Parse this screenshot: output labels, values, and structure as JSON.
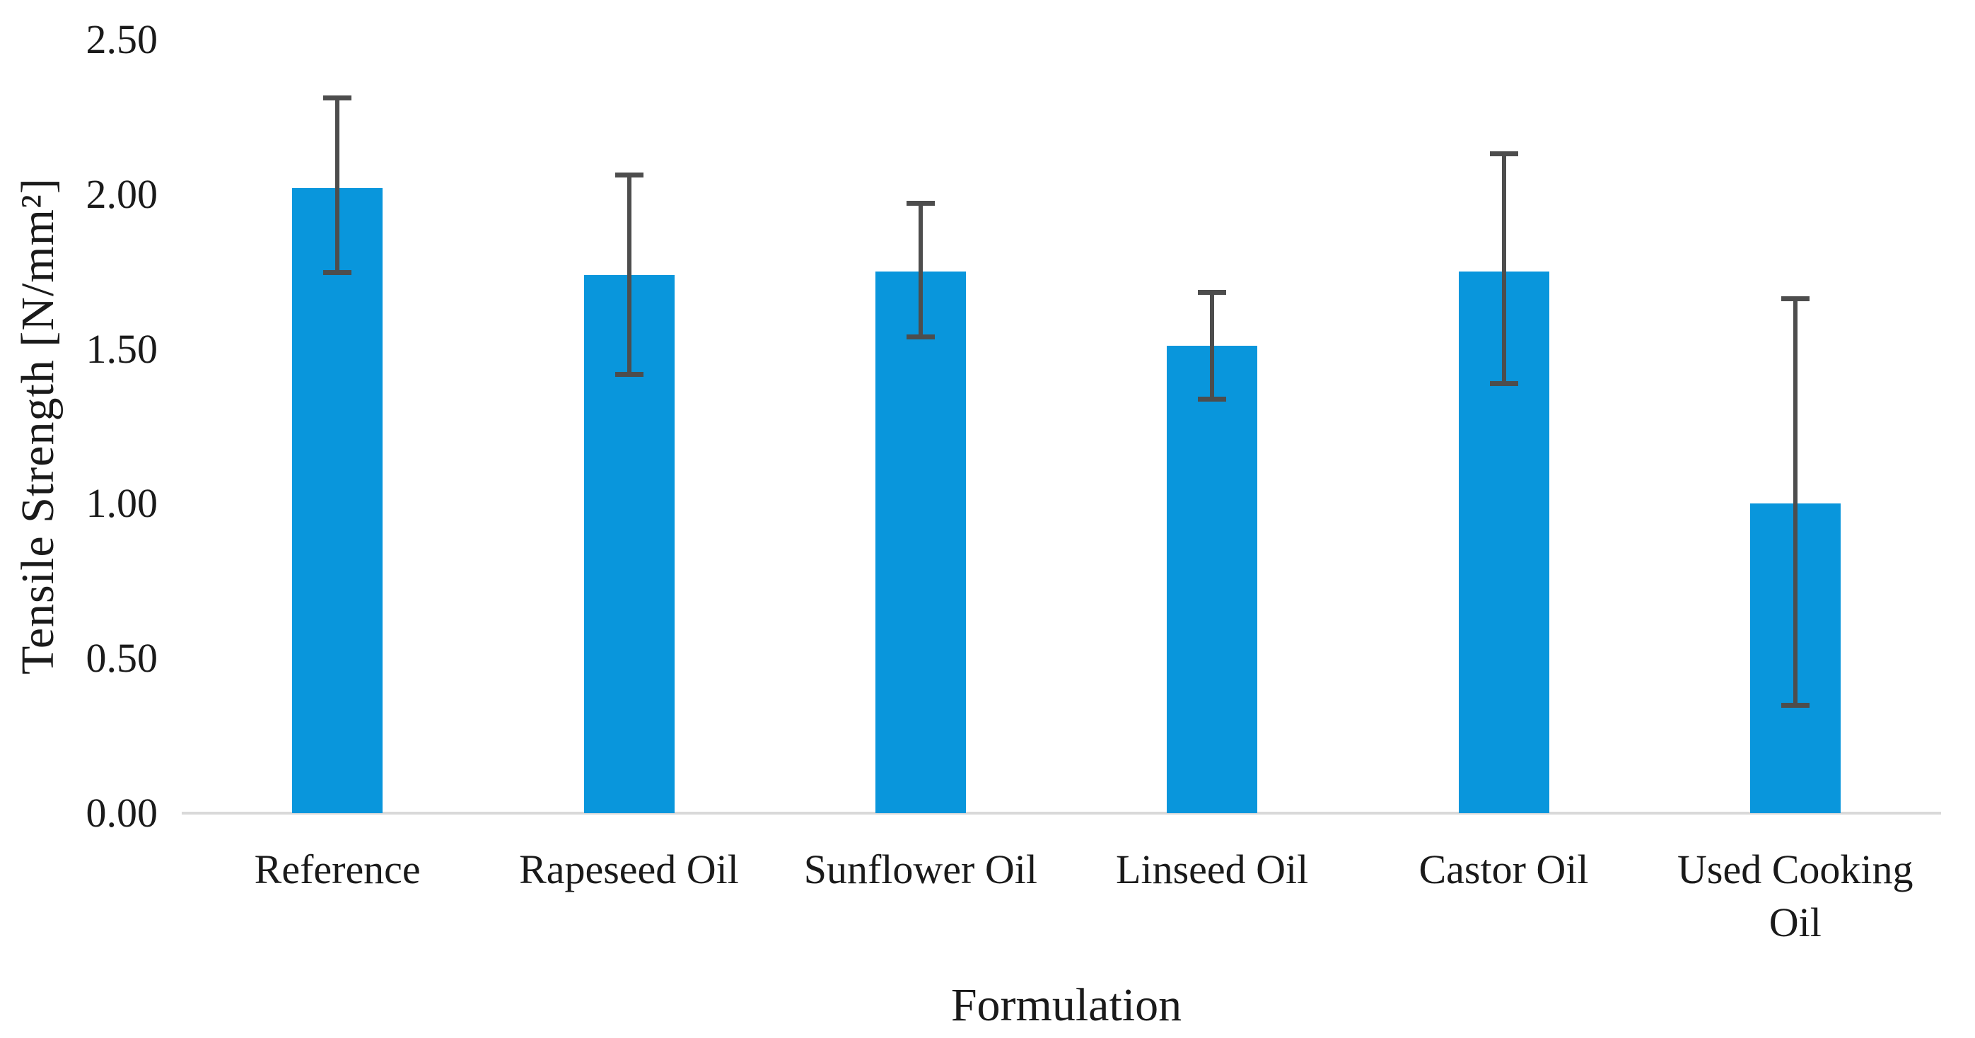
{
  "chart_data": {
    "type": "bar",
    "title": "",
    "xlabel": "Formulation",
    "ylabel": "Tensile Strength [N/mm²]",
    "categories": [
      "Reference",
      "Rapeseed Oil",
      "Sunflower Oil",
      "Linseed Oil",
      "Castor Oil",
      "Used Cooking Oil"
    ],
    "values": [
      2.02,
      1.74,
      1.75,
      1.51,
      1.75,
      1.0
    ],
    "error_low": [
      1.74,
      1.41,
      1.53,
      1.33,
      1.38,
      0.34
    ],
    "error_high": [
      2.32,
      2.07,
      1.98,
      1.69,
      2.14,
      1.67
    ],
    "ylim": [
      0,
      2.5
    ],
    "yticks": [
      {
        "value": 0.0,
        "label": "0.00"
      },
      {
        "value": 0.5,
        "label": "0.50"
      },
      {
        "value": 1.0,
        "label": "1.00"
      },
      {
        "value": 1.5,
        "label": "1.50"
      },
      {
        "value": 2.0,
        "label": "2.00"
      },
      {
        "value": 2.5,
        "label": "2.50"
      }
    ],
    "grid": false,
    "legend": false,
    "bar_color": "#0996DC",
    "error_bar_color": "#4D4D4D",
    "axis_line_color": "#D9D9D9",
    "text_color": "#1A1A1A",
    "background_color": "#FFFFFF"
  }
}
